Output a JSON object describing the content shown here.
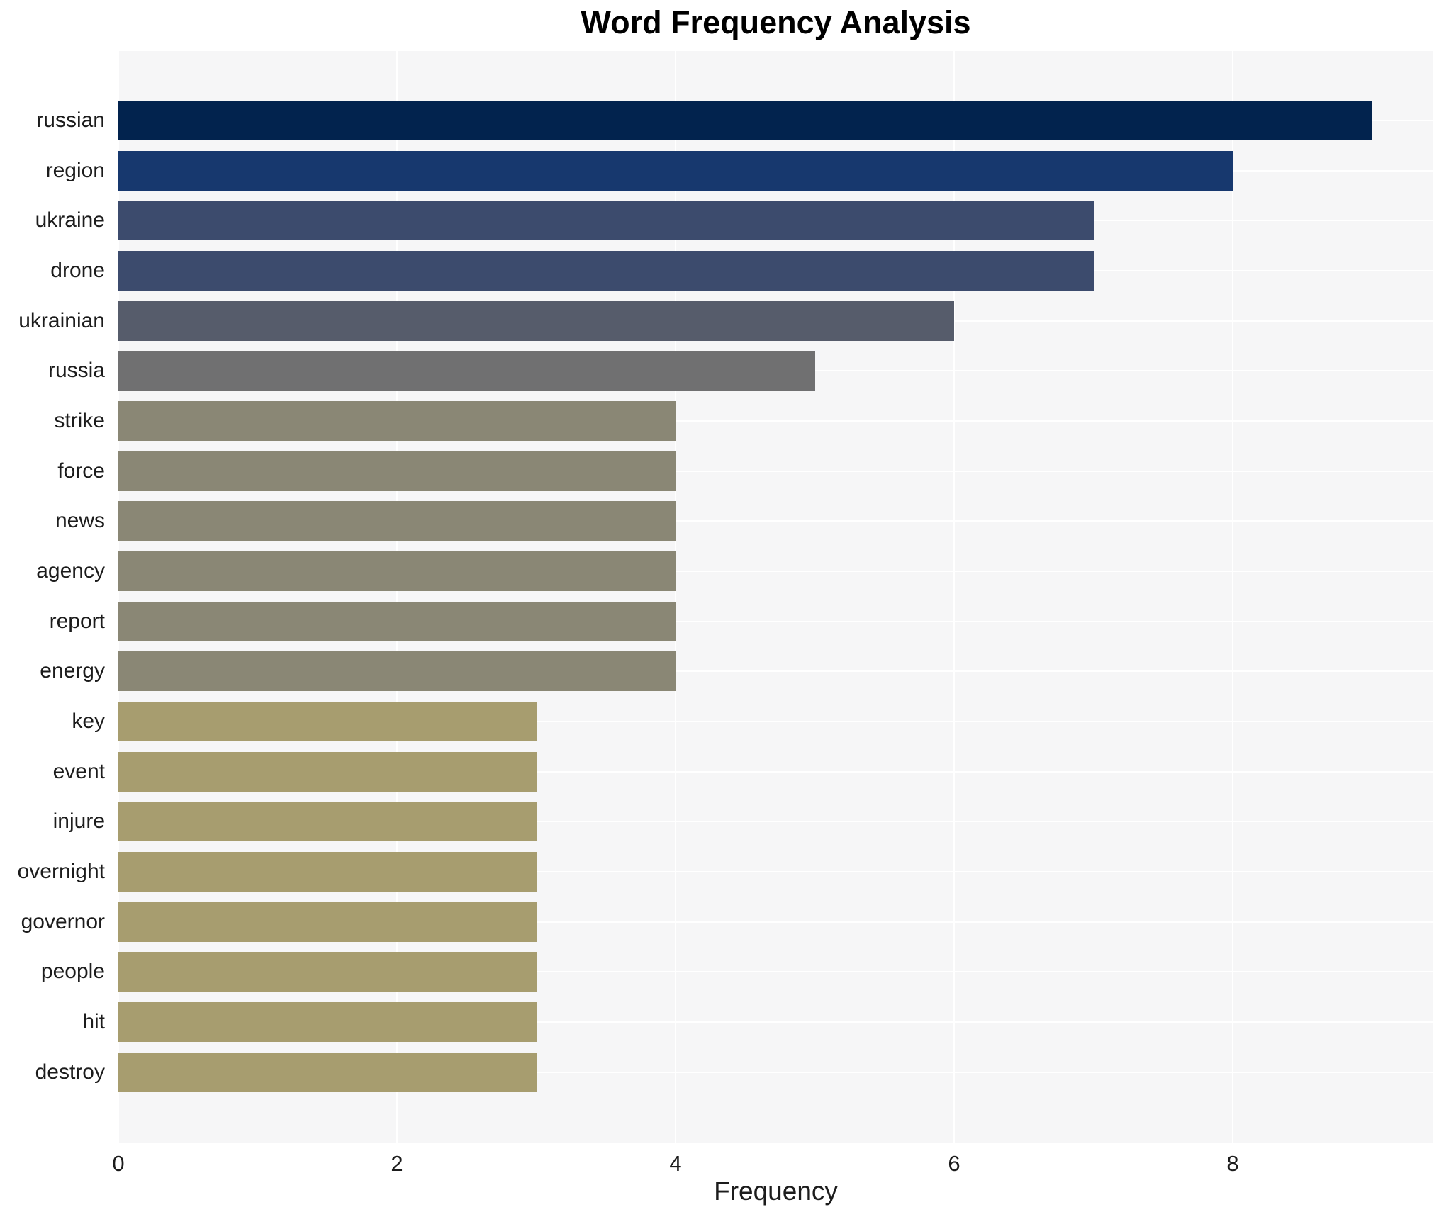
{
  "chart": {
    "title": "Word Frequency Analysis"
  },
  "chart_data": {
    "type": "bar",
    "orientation": "horizontal",
    "title": "Word Frequency Analysis",
    "xlabel": "Frequency",
    "ylabel": "",
    "categories": [
      "russian",
      "region",
      "ukraine",
      "drone",
      "ukrainian",
      "russia",
      "strike",
      "force",
      "news",
      "agency",
      "report",
      "energy",
      "key",
      "event",
      "injure",
      "overnight",
      "governor",
      "people",
      "hit",
      "destroy"
    ],
    "values": [
      9,
      8,
      7,
      7,
      6,
      5,
      4,
      4,
      4,
      4,
      4,
      4,
      3,
      3,
      3,
      3,
      3,
      3,
      3,
      3
    ],
    "bar_colors": [
      "#02234e",
      "#17386e",
      "#3c4b6d",
      "#3c4b6d",
      "#565c6b",
      "#707071",
      "#8a8775",
      "#8a8775",
      "#8a8775",
      "#8a8775",
      "#8a8775",
      "#8a8775",
      "#a79d6f",
      "#a79d6f",
      "#a79d6f",
      "#a79d6f",
      "#a79d6f",
      "#a79d6f",
      "#a79d6f",
      "#a79d6f"
    ],
    "xlim": [
      0,
      9.44
    ],
    "xticks": [
      0,
      2,
      4,
      6,
      8
    ],
    "grid": true,
    "grid_color": "#ffffff",
    "plot_bg": "#f6f6f7",
    "legend": false
  }
}
